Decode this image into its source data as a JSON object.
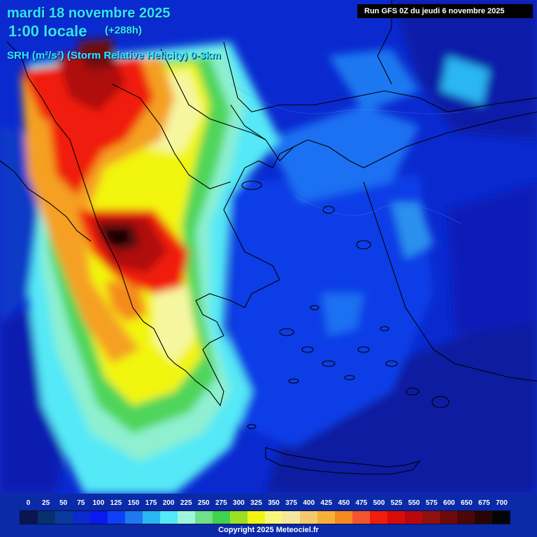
{
  "header": {
    "date": "mardi 18 novembre 2025",
    "time": "1:00 locale",
    "lead": "(+288h)",
    "parameter": "SRH (m²/s²) (Storm Relative Helicity) 0-3km"
  },
  "run_info": "Run GFS 0Z du jeudi 6 novembre 2025",
  "legend": {
    "labels": [
      "0",
      "25",
      "50",
      "75",
      "100",
      "125",
      "150",
      "175",
      "200",
      "225",
      "250",
      "275",
      "300",
      "325",
      "350",
      "375",
      "400",
      "425",
      "450",
      "475",
      "500",
      "525",
      "550",
      "575",
      "600",
      "650",
      "675",
      "700"
    ],
    "colors": [
      "#0b1550",
      "#08306e",
      "#0a3a9a",
      "#0a2acb",
      "#0a1aef",
      "#1040f5",
      "#1e78f0",
      "#2ab6f2",
      "#54e8f6",
      "#9ef5d8",
      "#6fe08c",
      "#3fd24e",
      "#9be024",
      "#f2f511",
      "#f6f67c",
      "#f6e59c",
      "#f5c86e",
      "#f6b03a",
      "#f58a1e",
      "#f45430",
      "#f01c0c",
      "#d80a0a",
      "#b8080e",
      "#901010",
      "#6e0a0a",
      "#4a0808",
      "#2a0505",
      "#050505"
    ]
  },
  "copyright": "Copyright 2025 Meteociel.fr"
}
